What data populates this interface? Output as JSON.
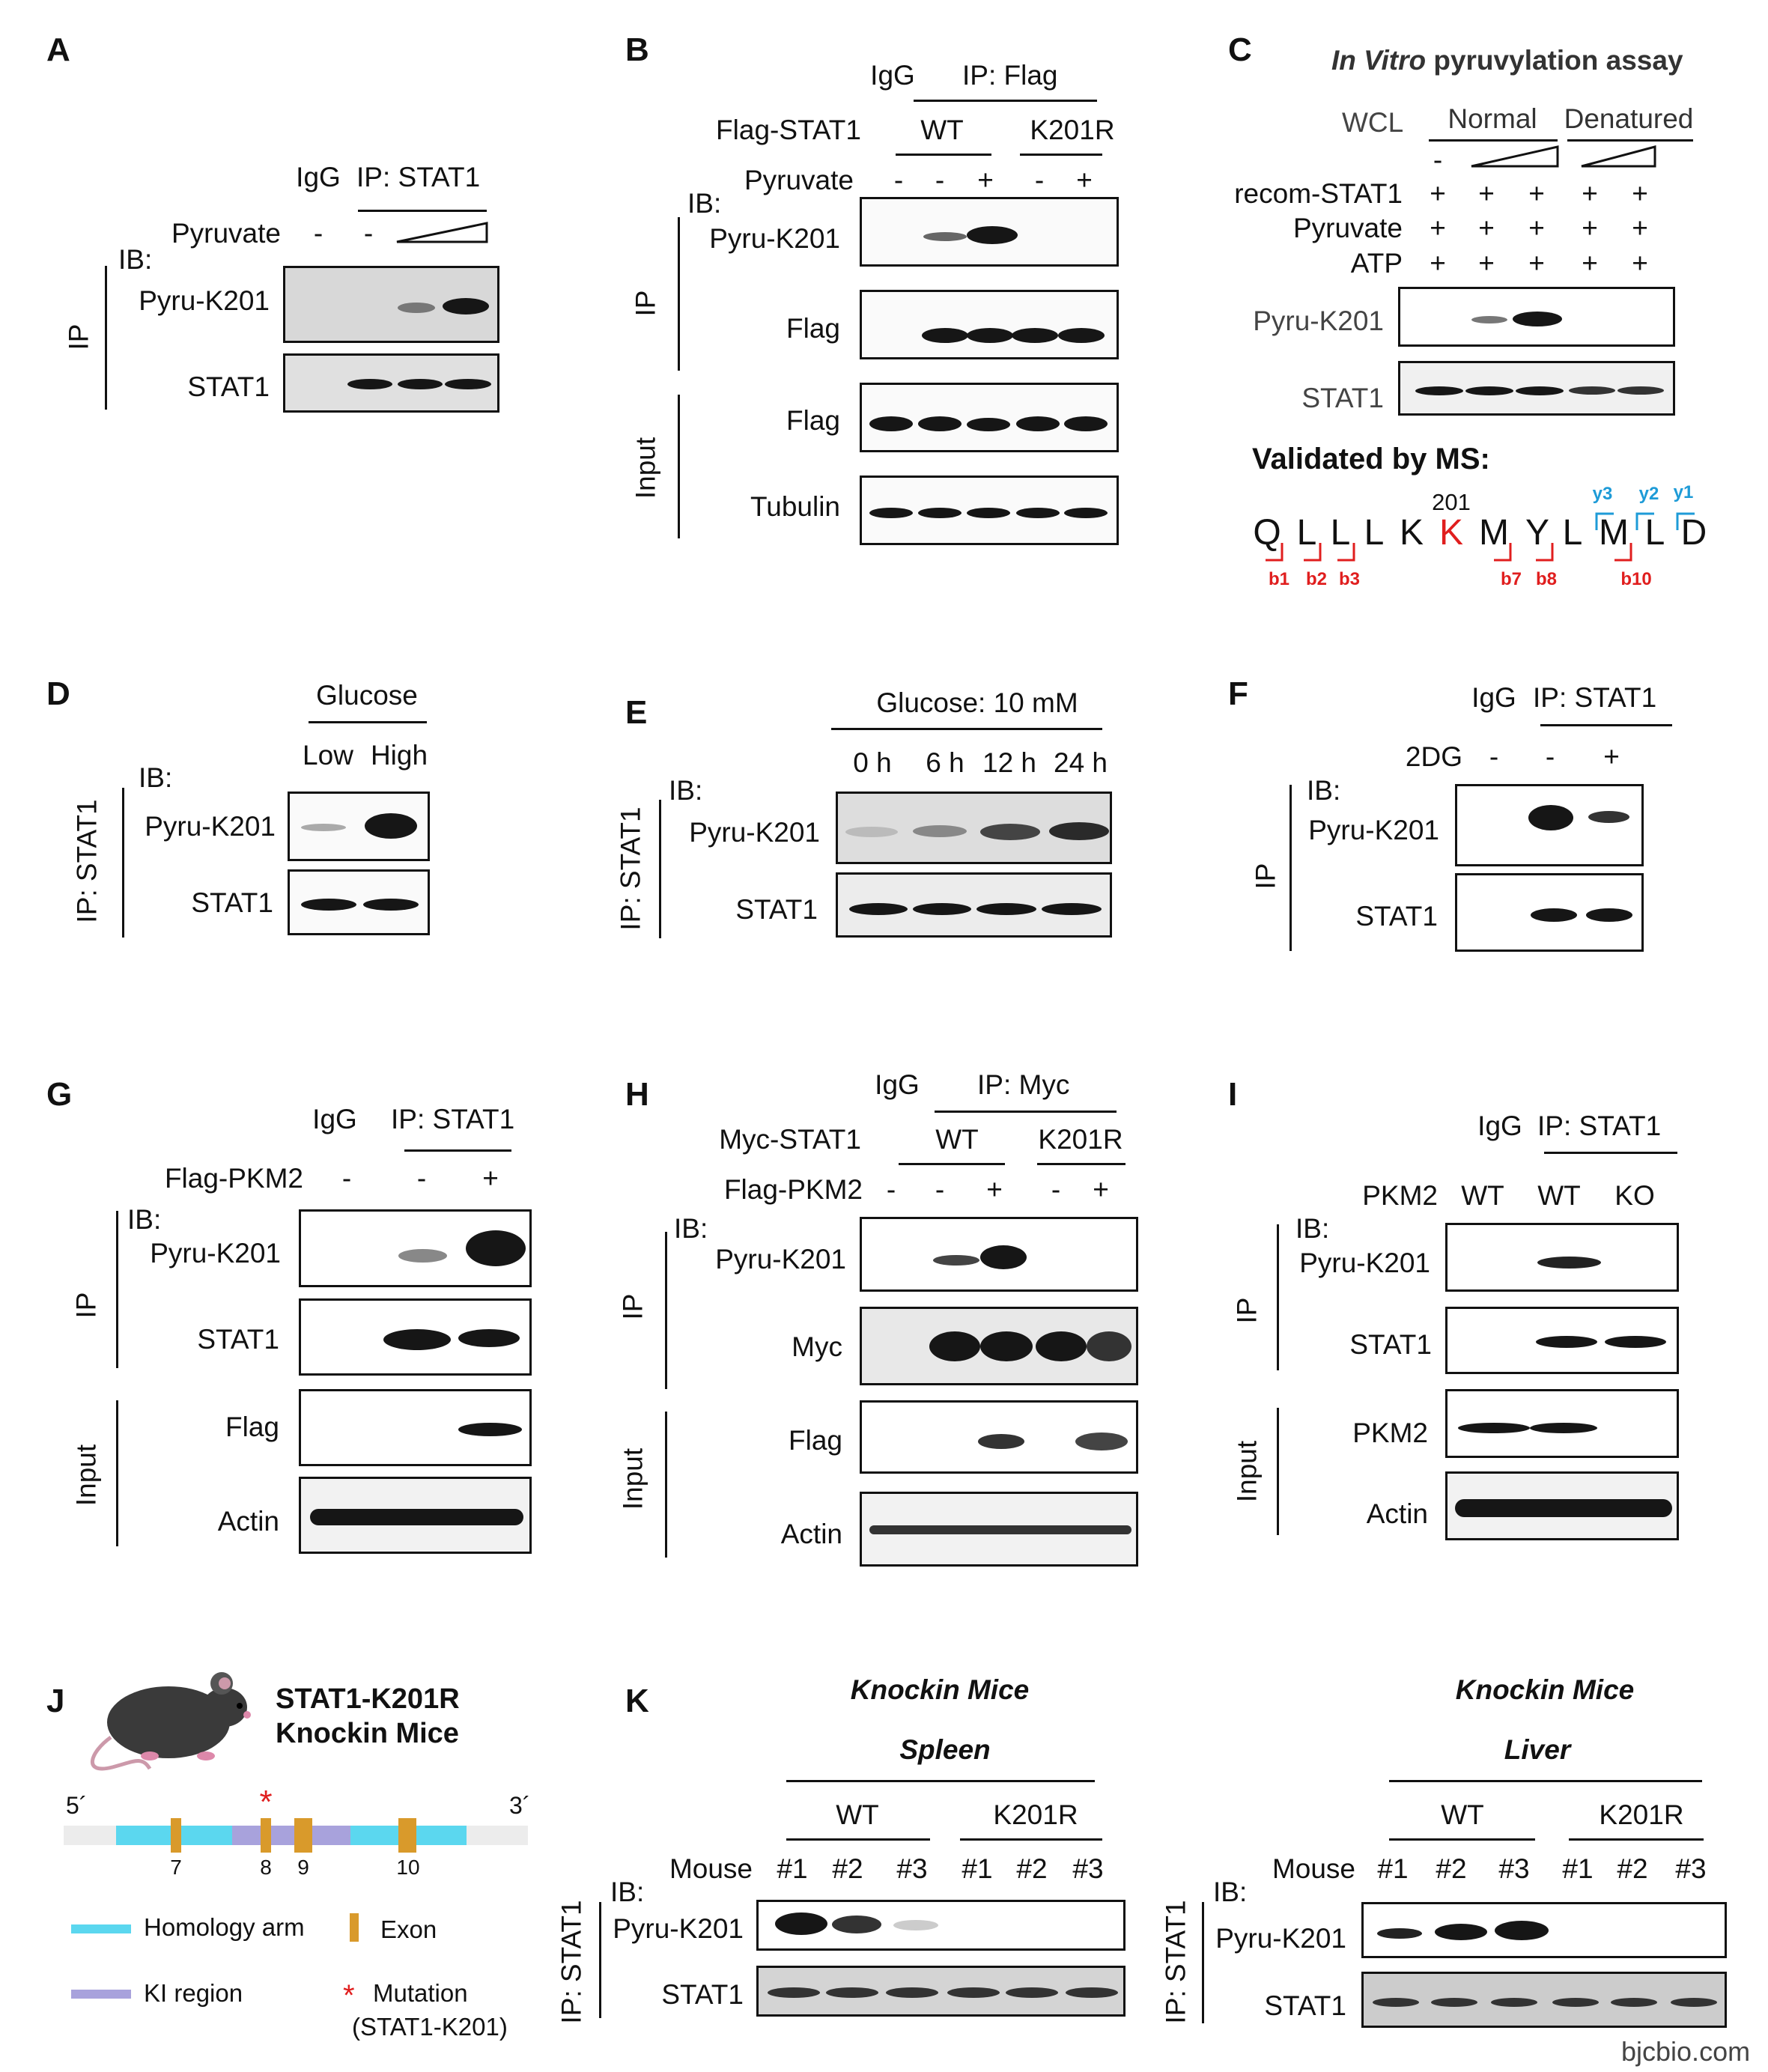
{
  "panels": {
    "A": {
      "label": "A",
      "igg": "IgG",
      "ip": "IP: STAT1",
      "treatment": "Pyruvate",
      "lanes": [
        "-",
        "-"
      ],
      "ib": "IB:",
      "side": "IP",
      "rows": [
        "Pyru-K201",
        "STAT1"
      ]
    },
    "B": {
      "label": "B",
      "igg": "IgG",
      "ip": "IP: Flag",
      "construct": "Flag-STAT1",
      "groups": [
        "WT",
        "K201R"
      ],
      "treatment": "Pyruvate",
      "lanes": [
        "-",
        "-",
        "+",
        "-",
        "+"
      ],
      "ib": "IB:",
      "side_ip": "IP",
      "side_input": "Input",
      "rows": [
        "Pyru-K201",
        "Flag",
        "Flag",
        "Tubulin"
      ]
    },
    "C": {
      "label": "C",
      "title_italic": "In Vitro",
      "title_rest": " pyruvylation assay",
      "wcl": "WCL",
      "groups": [
        "Normal",
        "Denatured"
      ],
      "first_lane": "-",
      "row_labels": [
        "recom-STAT1",
        "Pyruvate",
        "ATP"
      ],
      "plus": "+",
      "rows": [
        "Pyru-K201",
        "STAT1"
      ],
      "ms_title": "Validated by MS:",
      "position": "201",
      "peptide": [
        "Q",
        "L",
        "L",
        "L",
        "K",
        "K",
        "M",
        "Y",
        "L",
        "M",
        "L",
        "D"
      ],
      "b_ions": [
        "b1",
        "b2",
        "b3",
        "b7",
        "b8",
        "b10"
      ],
      "y_ions": [
        "y3",
        "y2",
        "y1"
      ]
    },
    "D": {
      "label": "D",
      "condition": "Glucose",
      "lanes": [
        "Low",
        "High"
      ],
      "ib": "IB:",
      "side": "IP: STAT1",
      "rows": [
        "Pyru-K201",
        "STAT1"
      ]
    },
    "E": {
      "label": "E",
      "condition": "Glucose: 10 mM",
      "lanes": [
        "0 h",
        "6 h",
        "12 h",
        "24 h"
      ],
      "ib": "IB:",
      "side": "IP: STAT1",
      "rows": [
        "Pyru-K201",
        "STAT1"
      ]
    },
    "F": {
      "label": "F",
      "igg": "IgG",
      "ip": "IP: STAT1",
      "treatment": "2DG",
      "lanes": [
        "-",
        "-",
        "+"
      ],
      "ib": "IB:",
      "side": "IP",
      "rows": [
        "Pyru-K201",
        "STAT1"
      ]
    },
    "G": {
      "label": "G",
      "igg": "IgG",
      "ip": "IP: STAT1",
      "treatment": "Flag-PKM2",
      "lanes": [
        "-",
        "-",
        "+"
      ],
      "ib": "IB:",
      "side_ip": "IP",
      "side_input": "Input",
      "rows": [
        "Pyru-K201",
        "STAT1",
        "Flag",
        "Actin"
      ]
    },
    "H": {
      "label": "H",
      "igg": "IgG",
      "ip": "IP: Myc",
      "construct": "Myc-STAT1",
      "groups": [
        "WT",
        "K201R"
      ],
      "treatment": "Flag-PKM2",
      "lanes": [
        "-",
        "-",
        "+",
        "-",
        "+"
      ],
      "ib": "IB:",
      "side_ip": "IP",
      "side_input": "Input",
      "rows": [
        "Pyru-K201",
        "Myc",
        "Flag",
        "Actin"
      ]
    },
    "I": {
      "label": "I",
      "igg": "IgG",
      "ip": "IP: STAT1",
      "genotype": "PKM2",
      "lanes": [
        "WT",
        "WT",
        "KO"
      ],
      "ib": "IB:",
      "side_ip": "IP",
      "side_input": "Input",
      "rows": [
        "Pyru-K201",
        "STAT1",
        "PKM2",
        "Actin"
      ]
    },
    "J": {
      "label": "J",
      "title1": "STAT1-K201R",
      "title2": "Knockin Mice",
      "five": "5´",
      "three": "3´",
      "exons": [
        "7",
        "8",
        "9",
        "10"
      ],
      "legend": {
        "homology": "Homology arm",
        "exon": "Exon",
        "ki": "KI region",
        "mutation": "Mutation",
        "mutation_detail": "(STAT1-K201)"
      },
      "star": "*"
    },
    "K": {
      "label": "K",
      "left": {
        "title": "Knockin Mice",
        "tissue": "Spleen"
      },
      "right": {
        "title": "Knockin Mice",
        "tissue": "Liver"
      },
      "groups": [
        "WT",
        "K201R"
      ],
      "mouse": "Mouse",
      "lanes": [
        "#1",
        "#2",
        "#3",
        "#1",
        "#2",
        "#3"
      ],
      "ib": "IB:",
      "side": "IP: STAT1",
      "rows": [
        "Pyru-K201",
        "STAT1"
      ]
    }
  },
  "watermark": "bjcbio.com"
}
